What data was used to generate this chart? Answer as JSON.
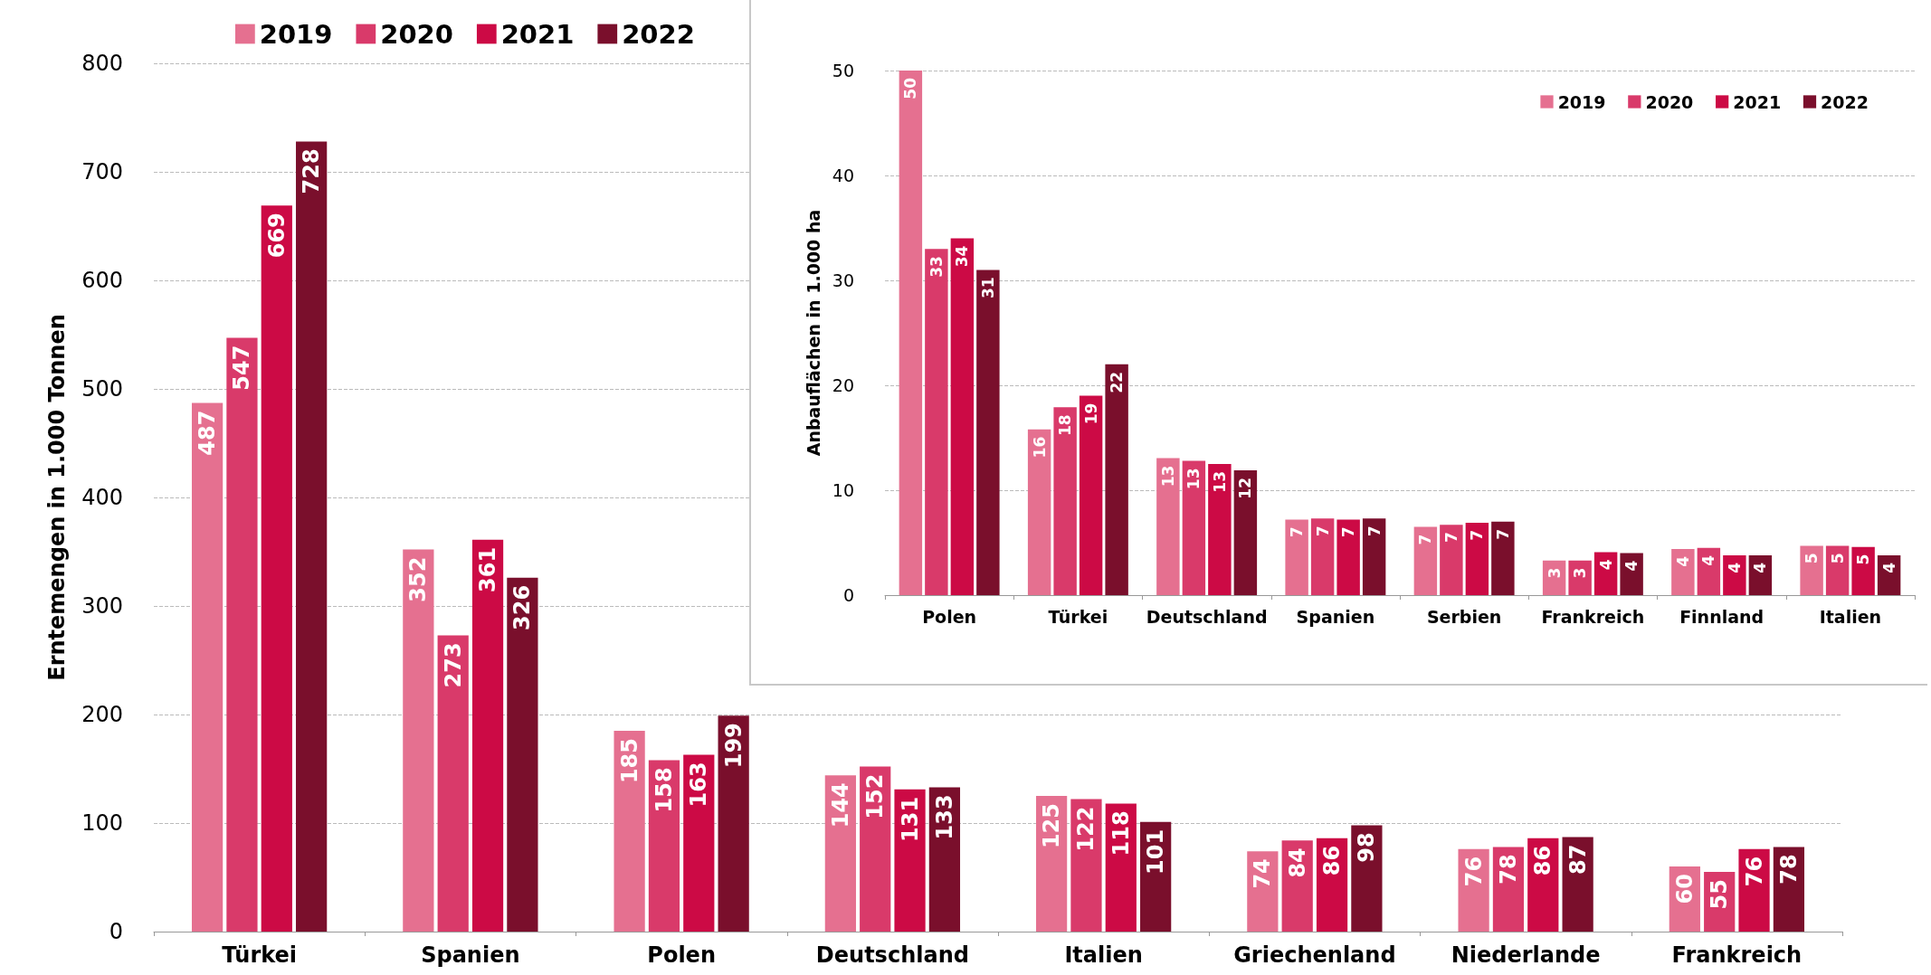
{
  "chart_data": [
    {
      "type": "bar",
      "ylabel": "Erntemengen in 1.000 Tonnen",
      "categories": [
        "Türkei",
        "Spanien",
        "Polen",
        "Deutschland",
        "Italien",
        "Griechenland",
        "Niederlande",
        "Frankreich"
      ],
      "series": [
        {
          "name": "2019",
          "color": "#e57090",
          "values": [
            487,
            352,
            185,
            144,
            125,
            74,
            76,
            60
          ]
        },
        {
          "name": "2020",
          "color": "#d93a6a",
          "values": [
            547,
            273,
            158,
            152,
            122,
            84,
            78,
            55
          ]
        },
        {
          "name": "2021",
          "color": "#cc0a45",
          "values": [
            669,
            361,
            163,
            131,
            118,
            86,
            86,
            76
          ]
        },
        {
          "name": "2022",
          "color": "#7a0f2c",
          "values": [
            728,
            326,
            199,
            133,
            101,
            98,
            87,
            78
          ]
        }
      ],
      "ylim": [
        0,
        800
      ],
      "yticks": [
        0,
        100,
        200,
        300,
        400,
        500,
        600,
        700,
        800
      ],
      "grid": "y",
      "legend": "top",
      "data_labels": true
    },
    {
      "type": "bar",
      "ylabel": "Anbauflächen in 1.000 ha",
      "categories": [
        "Polen",
        "Türkei",
        "Deutschland",
        "Spanien",
        "Serbien",
        "Frankreich",
        "Finnland",
        "Italien"
      ],
      "series": [
        {
          "name": "2019",
          "color": "#e57090",
          "values": [
            50,
            15.8,
            13.05,
            7.2,
            6.5,
            3.3,
            4.4,
            4.7
          ],
          "value_labels": [
            "50",
            "16",
            "13",
            "7",
            "7",
            "3",
            "4",
            "5"
          ]
        },
        {
          "name": "2020",
          "color": "#d93a6a",
          "values": [
            33,
            17.9,
            12.8,
            7.3,
            6.7,
            3.3,
            4.5,
            4.7
          ],
          "value_labels": [
            "33",
            "18",
            "13",
            "7",
            "7",
            "3",
            "4",
            "5"
          ]
        },
        {
          "name": "2021",
          "color": "#cc0a45",
          "values": [
            34,
            19,
            12.5,
            7.2,
            6.9,
            4.1,
            3.8,
            4.6
          ],
          "value_labels": [
            "34",
            "19",
            "13",
            "7",
            "7",
            "4",
            "4",
            "5"
          ]
        },
        {
          "name": "2022",
          "color": "#7a0f2c",
          "values": [
            31,
            22,
            11.9,
            7.3,
            7.0,
            4.0,
            3.8,
            3.8
          ],
          "value_labels": [
            "31",
            "22",
            "12",
            "7",
            "7",
            "4",
            "4",
            "4"
          ]
        }
      ],
      "ylim": [
        0,
        50
      ],
      "yticks": [
        0,
        10,
        20,
        30,
        40,
        50
      ],
      "grid": "y",
      "legend": "top right"
    }
  ]
}
